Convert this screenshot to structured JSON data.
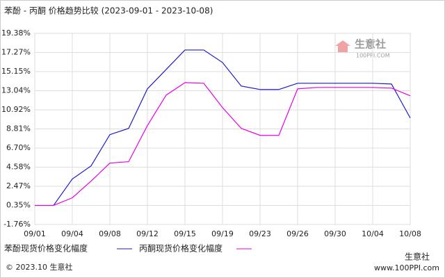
{
  "chart_data": {
    "type": "line",
    "title": "苯酚 - 丙酮 价格趋势比较 (2023-09-01 - 2023-10-08)",
    "categories": [
      "09/01",
      null,
      "09/04",
      null,
      "09/08",
      null,
      "09/12",
      null,
      "09/15",
      null,
      "09/19",
      null,
      "09/23",
      null,
      "09/26",
      null,
      "09/30",
      null,
      "10/04",
      null,
      "10/08"
    ],
    "series": [
      {
        "name": "苯酚现货价格变化幅度",
        "color": "#1a1acc",
        "values": [
          0.35,
          0.35,
          3.27,
          4.72,
          8.18,
          8.87,
          13.24,
          15.39,
          17.54,
          17.54,
          16.16,
          13.55,
          13.17,
          13.17,
          13.86,
          13.86,
          13.86,
          13.86,
          13.86,
          13.78,
          10.02
        ]
      },
      {
        "name": "丙酮现货价格变化幅度",
        "color": "#e600e6",
        "values": [
          0.35,
          0.35,
          1.19,
          3.04,
          5.03,
          5.19,
          9.18,
          12.55,
          13.93,
          13.86,
          11.17,
          8.87,
          8.1,
          8.1,
          13.24,
          13.4,
          13.4,
          13.4,
          13.4,
          13.32,
          12.48
        ]
      }
    ],
    "ylim": [
      -1.76,
      19.38
    ],
    "yticks": [
      {
        "value": -1.76,
        "label": "-1.76%"
      },
      {
        "value": 0.35,
        "label": "0.35%"
      },
      {
        "value": 2.47,
        "label": "2.47%"
      },
      {
        "value": 4.58,
        "label": "4.58%"
      },
      {
        "value": 6.7,
        "label": "6.70%"
      },
      {
        "value": 8.81,
        "label": "8.81%"
      },
      {
        "value": 10.92,
        "label": "10.92%"
      },
      {
        "value": 13.04,
        "label": "13.04%"
      },
      {
        "value": 15.15,
        "label": "15.15%"
      },
      {
        "value": 17.27,
        "label": "17.27%"
      },
      {
        "value": 19.38,
        "label": "19.38%"
      }
    ],
    "grid": true,
    "watermark": "生意社",
    "watermark_url": "100PPI.COM",
    "footer": "© 2023.10 生意社",
    "source_badge": "生意社",
    "source_url": "www.100PPI.com"
  }
}
